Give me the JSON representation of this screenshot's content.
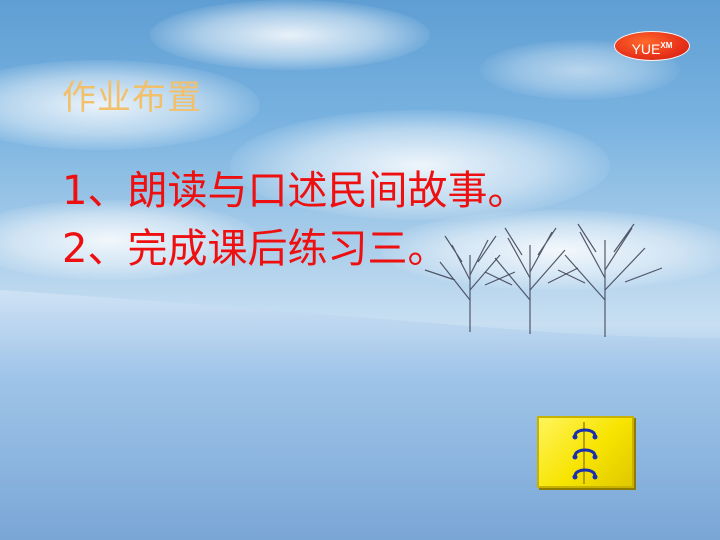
{
  "slide": {
    "logo_text": "YUE",
    "logo_superscript": "XM",
    "title": "作业布置",
    "items": [
      "1、朗读与口述民间故事。",
      "2、完成课后练习三。"
    ]
  },
  "colors": {
    "title": "#f2c06a",
    "body_text": "#ee1010",
    "logo_badge": "#e8321a",
    "notebook_button": "#f7e400",
    "notebook_rings": "#1a2fb0"
  },
  "icons": {
    "notebook": "notebook-icon"
  }
}
